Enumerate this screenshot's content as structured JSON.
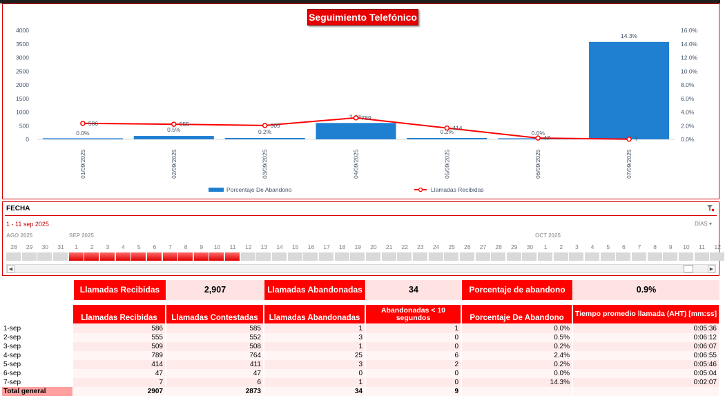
{
  "chart_data": {
    "type": "bar",
    "title": "Seguimiento Telefónico",
    "categories": [
      "01/09/2025",
      "02/09/2025",
      "03/09/2025",
      "04/09/2025",
      "05/09/2025",
      "06/09/2025",
      "07/09/2025"
    ],
    "series": [
      {
        "name": "Porcentaje De Abandono",
        "type": "bar",
        "axis": "right",
        "values": [
          0.0,
          0.5,
          0.2,
          2.4,
          0.2,
          0.0,
          14.3
        ],
        "labels": [
          "0.0%",
          "0.5%",
          "0.2%",
          "2.4%",
          "0.2%",
          "0.0%",
          "14.3%"
        ],
        "color": "#1f7fd1"
      },
      {
        "name": "Llamadas Recibidas",
        "type": "line",
        "axis": "left",
        "values": [
          586,
          555,
          509,
          789,
          414,
          47,
          7
        ],
        "labels": [
          "586",
          "555",
          "509",
          "789",
          "414",
          "47",
          "7"
        ],
        "color": "#ff0000"
      }
    ],
    "y_left": {
      "min": 0,
      "max": 4000,
      "ticks": [
        "0",
        "500",
        "1000",
        "1500",
        "2000",
        "2500",
        "3000",
        "3500",
        "4000"
      ]
    },
    "y_right": {
      "min": 0,
      "max": 16,
      "ticks": [
        "0.0%",
        "2.0%",
        "4.0%",
        "6.0%",
        "8.0%",
        "10.0%",
        "12.0%",
        "14.0%",
        "16.0%"
      ]
    },
    "legend_position": "bottom"
  },
  "timeline": {
    "header": "FECHA",
    "range": "1 - 11 sep 2025",
    "level": "DÍAS",
    "months": [
      "AGO 2025",
      "SEP 2025",
      "OCT 2025"
    ],
    "days": [
      "28",
      "29",
      "30",
      "31",
      "1",
      "2",
      "3",
      "4",
      "5",
      "6",
      "7",
      "8",
      "9",
      "10",
      "11",
      "12",
      "13",
      "14",
      "15",
      "16",
      "17",
      "18",
      "19",
      "20",
      "21",
      "22",
      "23",
      "24",
      "25",
      "26",
      "27",
      "28",
      "29",
      "30",
      "1",
      "2",
      "3",
      "4",
      "5",
      "6",
      "7",
      "8",
      "9",
      "10",
      "11",
      "12"
    ],
    "selected_from": 4,
    "selected_to": 14,
    "scroll_left": "◀",
    "scroll_right": "▶",
    "filter_icon": "clear-filter-icon"
  },
  "kpis": {
    "recibidas_label": "Llamadas Recibidas",
    "recibidas_value": "2,907",
    "abandonadas_label": "Llamadas Abandonadas",
    "abandonadas_value": "34",
    "porcentaje_label": "Porcentaje de abandono",
    "porcentaje_value": "0.9%"
  },
  "table": {
    "headers": [
      "Llamadas Recibidas",
      "Llamadas Contestadas",
      "Llamadas Abandonadas",
      "Abandonadas < 10 segundos",
      "Porcentaje De Abandono",
      "Tiempo promedio llamada (AHT) [mm:ss]"
    ],
    "rows": [
      [
        "1-sep",
        "586",
        "585",
        "1",
        "1",
        "0.0%",
        "0:05:36"
      ],
      [
        "2-sep",
        "555",
        "552",
        "3",
        "0",
        "0.5%",
        "0:06:12"
      ],
      [
        "3-sep",
        "509",
        "508",
        "1",
        "0",
        "0.2%",
        "0:06:07"
      ],
      [
        "4-sep",
        "789",
        "764",
        "25",
        "6",
        "2.4%",
        "0:06:55"
      ],
      [
        "5-sep",
        "414",
        "411",
        "3",
        "2",
        "0.2%",
        "0:05:46"
      ],
      [
        "6-sep",
        "47",
        "47",
        "0",
        "0",
        "0.0%",
        "0:05:04"
      ],
      [
        "7-sep",
        "7",
        "6",
        "1",
        "0",
        "14.3%",
        "0:02:07"
      ]
    ],
    "total": [
      "Total general",
      "2907",
      "2873",
      "34",
      "9",
      "",
      ""
    ]
  },
  "colors": {
    "accent": "#ff0000",
    "bar": "#1f7fd1",
    "kpi_fill": "#ffe3e3"
  }
}
